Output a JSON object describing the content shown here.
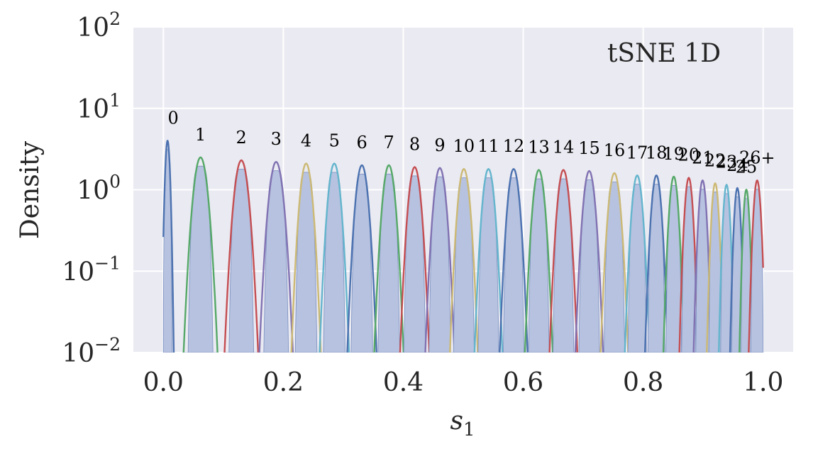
{
  "chart_data": {
    "type": "line",
    "annotation": "tSNE 1D",
    "xlabel_base": "s",
    "xlabel_sub": "1",
    "ylabel": "Density",
    "xlim": [
      -0.05,
      1.05
    ],
    "ylim": [
      0.01,
      100
    ],
    "yscale": "log",
    "grid": true,
    "xticks": [
      0.0,
      0.2,
      0.4,
      0.6,
      0.8,
      1.0
    ],
    "xtick_labels": [
      "0.0",
      "0.2",
      "0.4",
      "0.6",
      "0.8",
      "1.0"
    ],
    "yticks": [
      0.01,
      0.1,
      1,
      10,
      100
    ],
    "ytick_labels": [
      {
        "base": "10",
        "exp": "−2"
      },
      {
        "base": "10",
        "exp": "−1"
      },
      {
        "base": "10",
        "exp": "0"
      },
      {
        "base": "10",
        "exp": "1"
      },
      {
        "base": "10",
        "exp": "2"
      }
    ],
    "palette": [
      "#4c72b0",
      "#55a868",
      "#c44e52",
      "#8172b2",
      "#ccb974",
      "#64b5cd"
    ],
    "fill_color": "#b6c2df",
    "clusters": [
      {
        "label": "0",
        "center": 0.007,
        "peak": 4.0,
        "sd": 0.003
      },
      {
        "label": "1",
        "center": 0.062,
        "peak": 2.5,
        "sd": 0.0085
      },
      {
        "label": "2",
        "center": 0.13,
        "peak": 2.3,
        "sd": 0.0085
      },
      {
        "label": "3",
        "center": 0.188,
        "peak": 2.2,
        "sd": 0.0085
      },
      {
        "label": "4",
        "center": 0.238,
        "peak": 2.1,
        "sd": 0.0075
      },
      {
        "label": "5",
        "center": 0.285,
        "peak": 2.1,
        "sd": 0.0075
      },
      {
        "label": "6",
        "center": 0.331,
        "peak": 2.0,
        "sd": 0.0075
      },
      {
        "label": "7",
        "center": 0.376,
        "peak": 2.0,
        "sd": 0.0075
      },
      {
        "label": "8",
        "center": 0.419,
        "peak": 1.9,
        "sd": 0.0075
      },
      {
        "label": "9",
        "center": 0.461,
        "peak": 1.85,
        "sd": 0.0075
      },
      {
        "label": "10",
        "center": 0.501,
        "peak": 1.8,
        "sd": 0.0072
      },
      {
        "label": "11",
        "center": 0.542,
        "peak": 1.8,
        "sd": 0.0072
      },
      {
        "label": "12",
        "center": 0.584,
        "peak": 1.8,
        "sd": 0.0072
      },
      {
        "label": "13",
        "center": 0.626,
        "peak": 1.75,
        "sd": 0.0072
      },
      {
        "label": "14",
        "center": 0.667,
        "peak": 1.75,
        "sd": 0.0072
      },
      {
        "label": "15",
        "center": 0.71,
        "peak": 1.7,
        "sd": 0.0072
      },
      {
        "label": "16",
        "center": 0.752,
        "peak": 1.6,
        "sd": 0.0072
      },
      {
        "label": "17",
        "center": 0.79,
        "peak": 1.5,
        "sd": 0.0065
      },
      {
        "label": "18",
        "center": 0.822,
        "peak": 1.5,
        "sd": 0.006
      },
      {
        "label": "19",
        "center": 0.851,
        "peak": 1.45,
        "sd": 0.0055
      },
      {
        "label": "20",
        "center": 0.876,
        "peak": 1.4,
        "sd": 0.005
      },
      {
        "label": "21",
        "center": 0.899,
        "peak": 1.3,
        "sd": 0.0048
      },
      {
        "label": "22",
        "center": 0.92,
        "peak": 1.2,
        "sd": 0.0045
      },
      {
        "label": "23",
        "center": 0.939,
        "peak": 1.15,
        "sd": 0.0042
      },
      {
        "label": "24",
        "center": 0.957,
        "peak": 1.05,
        "sd": 0.004
      },
      {
        "label": "25",
        "center": 0.972,
        "peak": 1.0,
        "sd": 0.0038
      },
      {
        "label": "26+",
        "center": 0.99,
        "peak": 1.3,
        "sd": 0.0045
      }
    ]
  }
}
